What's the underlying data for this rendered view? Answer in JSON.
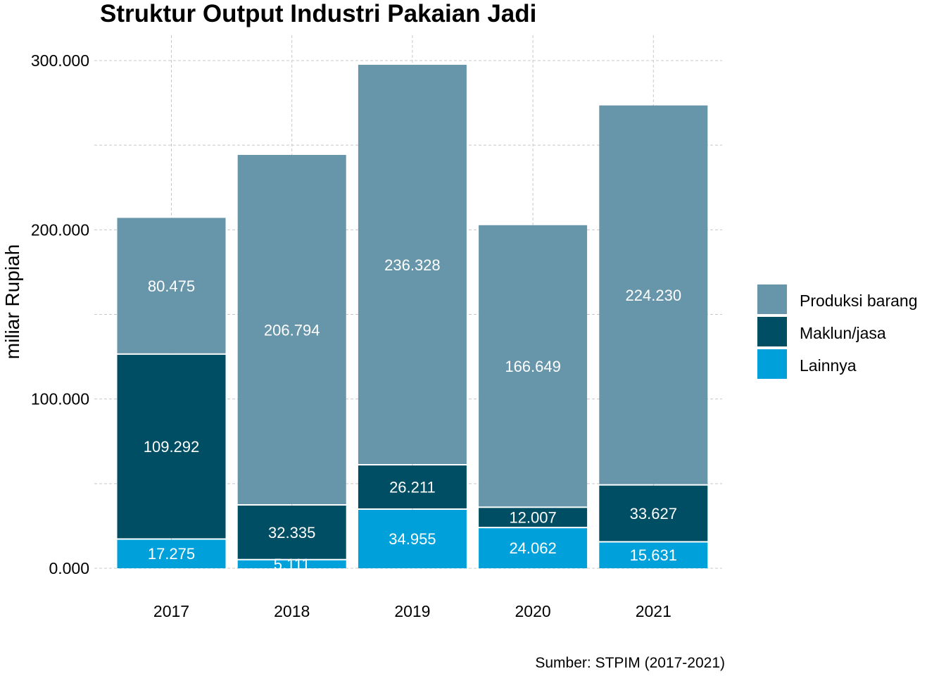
{
  "chart_data": {
    "type": "bar",
    "stacked": true,
    "title": "Struktur Output Industri Pakaian Jadi",
    "xlabel": "",
    "ylabel": "miliar Rupiah",
    "caption": "Sumber: STPIM (2017-2021)",
    "categories": [
      "2017",
      "2018",
      "2019",
      "2020",
      "2021"
    ],
    "ylim": [
      0,
      300
    ],
    "y_ticks": [
      0,
      100,
      200,
      300
    ],
    "y_tick_labels": [
      "0.000",
      "100.000",
      "200.000",
      "300.000"
    ],
    "grid": true,
    "legend_position": "right",
    "series": [
      {
        "name": "Lainnya",
        "color": "#00A1DA",
        "values": [
          17.275,
          5.111,
          34.955,
          24.062,
          15.631
        ],
        "labels": [
          "17.275",
          "5.111",
          "34.955",
          "24.062",
          "15.631"
        ]
      },
      {
        "name": "Maklun/jasa",
        "color": "#004E63",
        "values": [
          109.292,
          32.335,
          26.211,
          12.007,
          33.627
        ],
        "labels": [
          "109.292",
          "32.335",
          "26.211",
          "12.007",
          "33.627"
        ]
      },
      {
        "name": "Produksi barang",
        "color": "#6796AA",
        "values": [
          80.475,
          206.794,
          236.328,
          166.649,
          224.23
        ],
        "labels": [
          "80.475",
          "206.794",
          "236.328",
          "166.649",
          "224.230"
        ]
      }
    ],
    "legend_order": [
      "Produksi barang",
      "Maklun/jasa",
      "Lainnya"
    ]
  }
}
